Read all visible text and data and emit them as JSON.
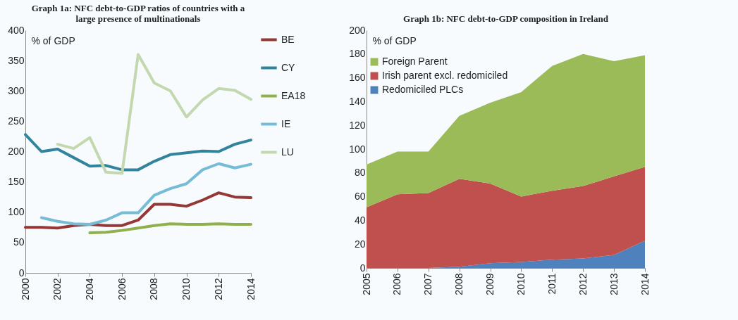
{
  "chart_data": [
    {
      "type": "line",
      "title": "Graph 1a: NFC debt-to-GDP ratios of countries with a large presence of multinationals",
      "ylabel": "% of GDP",
      "x": [
        2000,
        2001,
        2002,
        2003,
        2004,
        2005,
        2006,
        2007,
        2008,
        2009,
        2010,
        2011,
        2012,
        2013,
        2014
      ],
      "xlim": [
        2000,
        2014
      ],
      "xticks": [
        2000,
        2002,
        2004,
        2006,
        2008,
        2010,
        2012,
        2014
      ],
      "ylim": [
        0,
        400
      ],
      "yticks": [
        0,
        50,
        100,
        150,
        200,
        250,
        300,
        350,
        400
      ],
      "grid": false,
      "legend": "right",
      "series": [
        {
          "name": "BE",
          "color": "#953735",
          "values": [
            75,
            75,
            74,
            78,
            80,
            78,
            78,
            87,
            113,
            113,
            110,
            120,
            132,
            125,
            124
          ]
        },
        {
          "name": "CY",
          "color": "#31849b",
          "values": [
            228,
            200,
            204,
            190,
            176,
            177,
            170,
            170,
            184,
            195,
            198,
            201,
            200,
            212,
            219
          ]
        },
        {
          "name": "EA18",
          "color": "#8fb04a",
          "values": [
            null,
            null,
            null,
            null,
            66,
            67,
            70,
            74,
            78,
            81,
            80,
            80,
            81,
            80,
            80
          ]
        },
        {
          "name": "IE",
          "color": "#77bcd6",
          "values": [
            null,
            91,
            85,
            81,
            80,
            87,
            99,
            99,
            128,
            139,
            147,
            170,
            180,
            173,
            179
          ]
        },
        {
          "name": "LU",
          "color": "#c4d8b0",
          "values": [
            null,
            null,
            212,
            205,
            223,
            166,
            164,
            360,
            313,
            300,
            257,
            285,
            304,
            301,
            286
          ]
        }
      ]
    },
    {
      "type": "area",
      "stacked": true,
      "title": "Graph 1b: NFC debt-to-GDP composition in Ireland",
      "ylabel": "% of GDP",
      "x": [
        2005,
        2006,
        2007,
        2008,
        2009,
        2010,
        2011,
        2012,
        2013,
        2014
      ],
      "xlim": [
        2005,
        2014
      ],
      "xticks": [
        2005,
        2006,
        2007,
        2008,
        2009,
        2010,
        2011,
        2012,
        2013,
        2014
      ],
      "ylim": [
        0,
        200
      ],
      "yticks": [
        0,
        20,
        40,
        60,
        80,
        100,
        120,
        140,
        160,
        180,
        200
      ],
      "grid": false,
      "legend": "top left",
      "series": [
        {
          "name": "Redomiciled PLCs",
          "color": "#4f81bd",
          "values": [
            0,
            0,
            0,
            1,
            4,
            5,
            7,
            8,
            11,
            23
          ]
        },
        {
          "name": "Irish parent excl. redomiciled",
          "color": "#c0504d",
          "values": [
            51,
            62,
            63,
            74,
            67,
            55,
            58,
            61,
            66,
            62
          ]
        },
        {
          "name": "Foreign Parent",
          "color": "#9bbb59",
          "values": [
            36,
            36,
            35,
            53,
            68,
            88,
            105,
            111,
            97,
            94
          ]
        }
      ]
    }
  ]
}
